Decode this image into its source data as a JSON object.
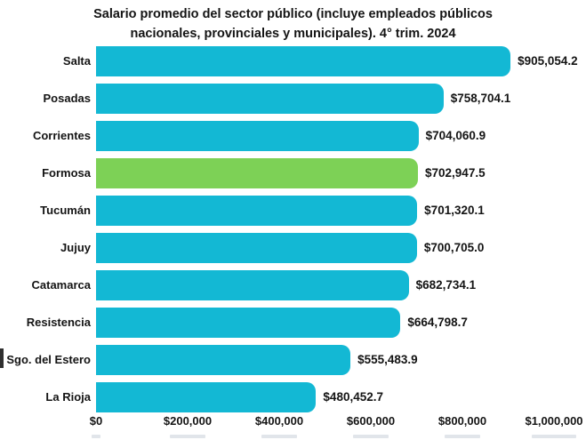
{
  "chart_data": {
    "type": "bar",
    "orientation": "horizontal",
    "title": "Salario promedio del sector público (incluye empleados públicos nacionales, provinciales y municipales). 4° trim. 2024",
    "title_line1": "Salario promedio del sector público (incluye empleados públicos",
    "title_line2": "nacionales, provinciales y municipales). 4° trim. 2024",
    "categories": [
      "Salta",
      "Posadas",
      "Corrientes",
      "Formosa",
      "Tucumán",
      "Jujuy",
      "Catamarca",
      "Resistencia",
      "Sgo. del Estero",
      "La Rioja"
    ],
    "values": [
      905054.2,
      758704.1,
      704060.9,
      702947.5,
      701320.1,
      700705.0,
      682734.1,
      664798.7,
      555483.9,
      480452.7
    ],
    "value_labels": [
      "$905,054.2",
      "$758,704.1",
      "$704,060.9",
      "$702,947.5",
      "$701,320.1",
      "$700,705.0",
      "$682,734.1",
      "$664,798.7",
      "$555,483.9",
      "$480,452.7"
    ],
    "highlight_category": "Formosa",
    "xlabel": "",
    "ylabel": "",
    "x_ticks": {
      "labels": [
        "$0",
        "$200,000",
        "$400,000",
        "$600,000",
        "$800,000",
        "$1,000,000"
      ],
      "values": [
        0,
        200000,
        400000,
        600000,
        800000,
        1000000
      ]
    },
    "xlim": [
      0,
      1000000
    ],
    "grid": false,
    "legend": false,
    "colors": {
      "bar_default": "#13b8d4",
      "bar_highlight": "#7dd156",
      "text": "#141414",
      "background": "#ffffff"
    }
  }
}
